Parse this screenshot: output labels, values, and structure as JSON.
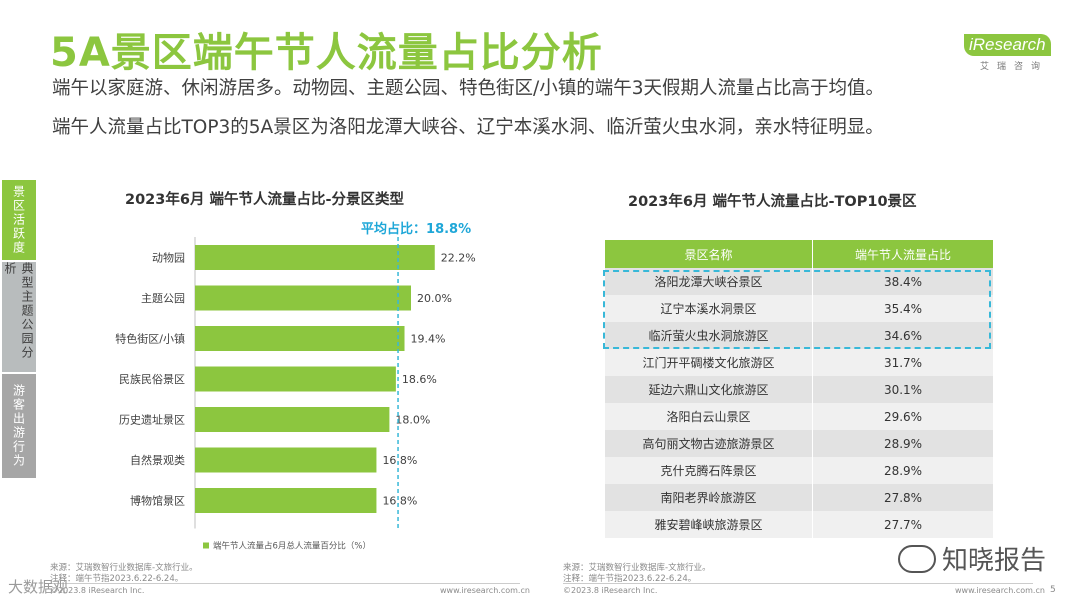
{
  "page": {
    "title": "5A景区端午节人流量占比分析",
    "subtitle_lines": [
      "端午以家庭游、休闲游居多。动物园、主题公园、特色街区/小镇的端午3天假期人流量占比高于均值。",
      "端午人流量占比TOP3的5A景区为洛阳龙潭大峡谷、辽宁本溪水洞、临沂萤火虫水洞，亲水特征明显。"
    ],
    "logo": {
      "word": "iResearch",
      "sub": "艾瑞咨询"
    },
    "side_tabs": [
      "景区活跃度",
      "典型主题公园分析",
      "游客出游行为"
    ],
    "page_number": "5"
  },
  "colors": {
    "accent": "#8cc63f",
    "dashed": "#38b8d8",
    "avg_label": "#1fa7d8"
  },
  "chart_data": [
    {
      "type": "bar",
      "orientation": "horizontal",
      "title": "2023年6月 端午节人流量占比-分景区类型",
      "categories": [
        "动物园",
        "主题公园",
        "特色街区/小镇",
        "民族民俗景区",
        "历史遗址景区",
        "自然景观类",
        "博物馆景区"
      ],
      "values": [
        22.2,
        20.0,
        19.4,
        18.6,
        18.0,
        16.8,
        16.8
      ],
      "value_labels": [
        "22.2%",
        "20.0%",
        "19.4%",
        "18.6%",
        "18.0%",
        "16.8%",
        "16.8%"
      ],
      "xlim": [
        0,
        25
      ],
      "average": 18.8,
      "average_label": "平均占比：18.8%",
      "legend": "端午节人流量占6月总人流量百分比（%）",
      "legend_position": "bottom-left"
    },
    {
      "type": "table",
      "title": "2023年6月 端午节人流量占比-TOP10景区",
      "columns": [
        "景区名称",
        "端午节人流量占比"
      ],
      "rows": [
        [
          "洛阳龙潭大峡谷景区",
          "38.4%"
        ],
        [
          "辽宁本溪水洞景区",
          "35.4%"
        ],
        [
          "临沂萤火虫水洞旅游区",
          "34.6%"
        ],
        [
          "江门开平碉楼文化旅游区",
          "31.7%"
        ],
        [
          "延边六鼎山文化旅游区",
          "30.1%"
        ],
        [
          "洛阳白云山景区",
          "29.6%"
        ],
        [
          "高句丽文物古迹旅游景区",
          "28.9%"
        ],
        [
          "克什克腾石阵景区",
          "28.9%"
        ],
        [
          "南阳老界岭旅游区",
          "27.8%"
        ],
        [
          "雅安碧峰峡旅游景区",
          "27.7%"
        ]
      ]
    }
  ],
  "footer": {
    "source_left": [
      "来源：艾瑞数智行业数据库-文旅行业。",
      "注释：端午节指2023.6.22-6.24。"
    ],
    "source_right": [
      "来源：艾瑞数智行业数据库-文旅行业。",
      "注释：端午节指2023.6.22-6.24。"
    ],
    "url": "www.iresearch.com.cn",
    "copyright_left": "©2023.8 iResearch Inc.",
    "copyright_right": "©2023.8 iResearch Inc.",
    "watermark_left": "大数据观",
    "watermark_right": "知晓报告"
  }
}
